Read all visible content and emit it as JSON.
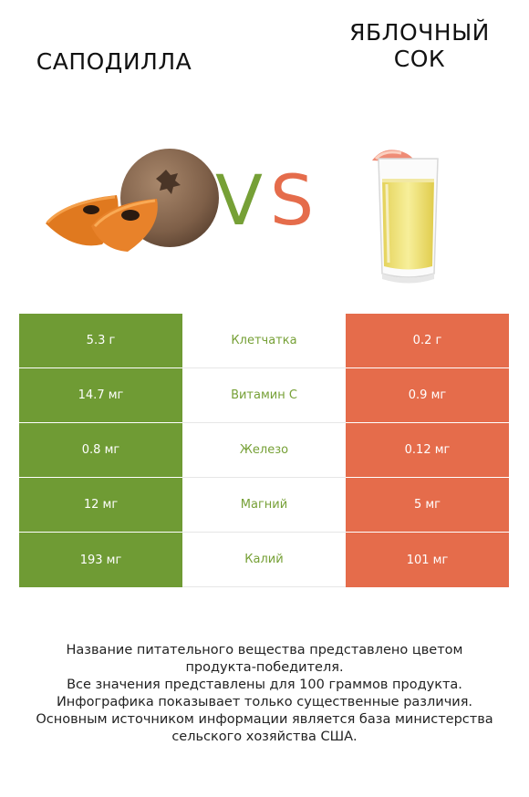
{
  "titles": {
    "left": "САПОДИЛЛА",
    "right_line1": "ЯБЛОЧНЫЙ",
    "right_line2": "СОК"
  },
  "vs": {
    "v": "V",
    "s": "S"
  },
  "colors": {
    "left": "#6f9b34",
    "right": "#e56c4b",
    "nutrient_text": "#76a036"
  },
  "rows": [
    {
      "left": "5.3 г",
      "name": "Клетчатка",
      "right": "0.2 г"
    },
    {
      "left": "14.7 мг",
      "name": "Витамин C",
      "right": "0.9 мг"
    },
    {
      "left": "0.8 мг",
      "name": "Железо",
      "right": "0.12 мг"
    },
    {
      "left": "12 мг",
      "name": "Магний",
      "right": "5 мг"
    },
    {
      "left": "193 мг",
      "name": "Калий",
      "right": "101 мг"
    }
  ],
  "notes": [
    "Название питательного вещества представлено цветом",
    "продукта-победителя.",
    "Все значения представлены для 100 граммов продукта.",
    "Инфографика показывает только существенные различия.",
    "Основным источником информации является база министерства",
    "сельского хозяйства США."
  ]
}
